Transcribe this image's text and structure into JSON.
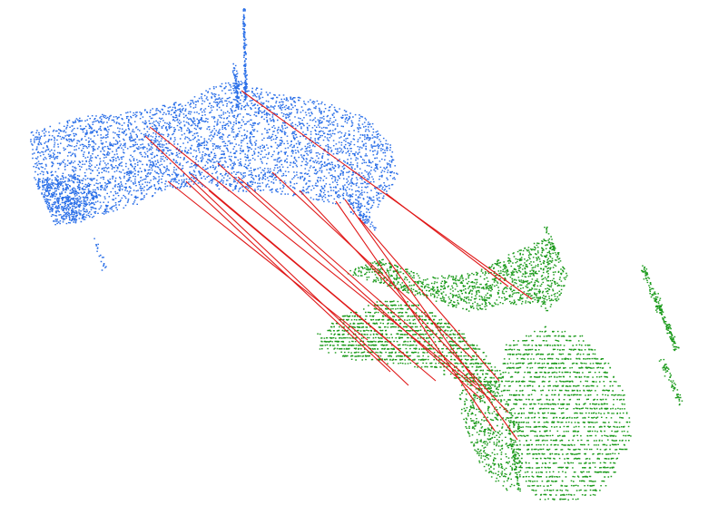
{
  "colors": {
    "background": "#ffffff",
    "source_cloud": "#2a6fe8",
    "target_cloud": "#1a9a1a",
    "correspondence": "#e01818"
  }
}
